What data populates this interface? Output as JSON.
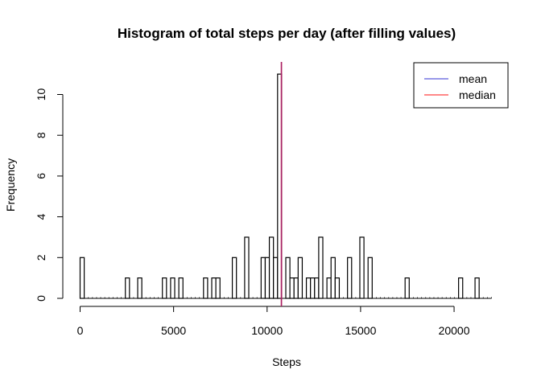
{
  "chart_data": {
    "type": "bar",
    "title": "Histogram of total steps per day (after filling values)",
    "xlabel": "Steps",
    "ylabel": "Frequency",
    "xlim": [
      0,
      22000
    ],
    "ylim": [
      0,
      11
    ],
    "x_ticks": [
      "0",
      "5000",
      "10000",
      "15000",
      "20000"
    ],
    "y_ticks": [
      "0",
      "2",
      "4",
      "6",
      "8",
      "10"
    ],
    "bin_width": 220,
    "bins": [
      {
        "start": 0,
        "end": 220,
        "count": 2
      },
      {
        "start": 2420,
        "end": 2640,
        "count": 1
      },
      {
        "start": 3080,
        "end": 3300,
        "count": 1
      },
      {
        "start": 4400,
        "end": 4620,
        "count": 1
      },
      {
        "start": 4840,
        "end": 5060,
        "count": 1
      },
      {
        "start": 5280,
        "end": 5500,
        "count": 1
      },
      {
        "start": 6600,
        "end": 6820,
        "count": 1
      },
      {
        "start": 7040,
        "end": 7260,
        "count": 1
      },
      {
        "start": 7260,
        "end": 7480,
        "count": 1
      },
      {
        "start": 8140,
        "end": 8360,
        "count": 2
      },
      {
        "start": 8800,
        "end": 9020,
        "count": 3
      },
      {
        "start": 9680,
        "end": 9900,
        "count": 2
      },
      {
        "start": 9900,
        "end": 10120,
        "count": 2
      },
      {
        "start": 10120,
        "end": 10340,
        "count": 3
      },
      {
        "start": 10340,
        "end": 10560,
        "count": 2
      },
      {
        "start": 10560,
        "end": 10780,
        "count": 11
      },
      {
        "start": 11000,
        "end": 11220,
        "count": 2
      },
      {
        "start": 11220,
        "end": 11440,
        "count": 1
      },
      {
        "start": 11440,
        "end": 11660,
        "count": 1
      },
      {
        "start": 11660,
        "end": 11880,
        "count": 2
      },
      {
        "start": 12100,
        "end": 12320,
        "count": 1
      },
      {
        "start": 12320,
        "end": 12540,
        "count": 1
      },
      {
        "start": 12540,
        "end": 12760,
        "count": 1
      },
      {
        "start": 12760,
        "end": 12980,
        "count": 3
      },
      {
        "start": 13200,
        "end": 13420,
        "count": 1
      },
      {
        "start": 13420,
        "end": 13640,
        "count": 2
      },
      {
        "start": 13640,
        "end": 13860,
        "count": 1
      },
      {
        "start": 14300,
        "end": 14520,
        "count": 2
      },
      {
        "start": 14960,
        "end": 15180,
        "count": 3
      },
      {
        "start": 15400,
        "end": 15620,
        "count": 2
      },
      {
        "start": 17380,
        "end": 17600,
        "count": 1
      },
      {
        "start": 20240,
        "end": 20460,
        "count": 1
      },
      {
        "start": 21120,
        "end": 21340,
        "count": 1
      }
    ],
    "mean": 10766,
    "median": 10766,
    "legend": {
      "position": "top-right",
      "entries": [
        {
          "label": "mean",
          "color": "#5a5adc"
        },
        {
          "label": "median",
          "color": "#ff4040"
        }
      ]
    },
    "colors": {
      "bar_fill": "#ffffff",
      "bar_stroke": "#000000",
      "overlap_line": "#a01f6a"
    },
    "grid": false
  }
}
